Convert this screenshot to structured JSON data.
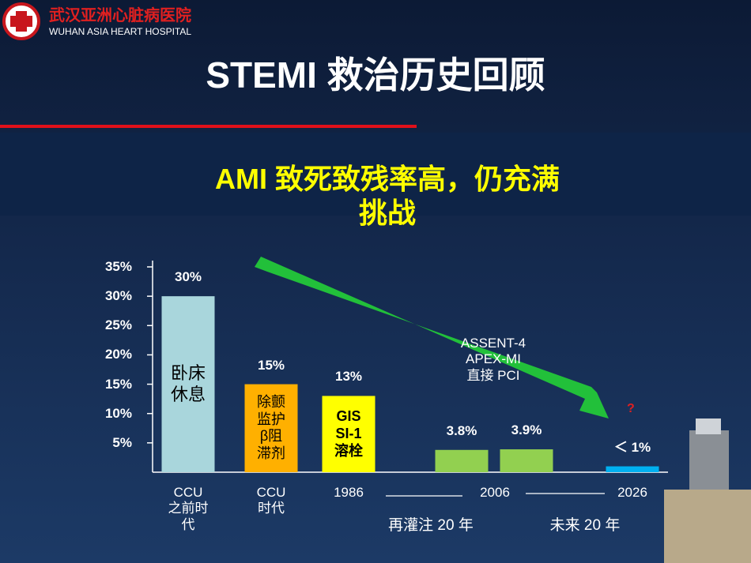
{
  "header": {
    "logo_cn": "武汉亚洲心脏病医院",
    "logo_en": "WUHAN ASIA HEART HOSPITAL",
    "title": "STEMI 救治历史回顾",
    "subtitle": "AMI 致死致残率高，仍充满挑战"
  },
  "chart_data": {
    "type": "bar",
    "categories": [
      "CCU\n之前时\n代",
      "CCU\n时代",
      "1986",
      null,
      "2006",
      "2026"
    ],
    "values": [
      30,
      15,
      13,
      3.8,
      3.9,
      1
    ],
    "value_labels": [
      "30%",
      "15%",
      "13%",
      "3.8%",
      "3.9%",
      "＜ 1%"
    ],
    "colors": [
      "#a9d6dc",
      "#ffb000",
      "#ffff00",
      "#92d050",
      "#92d050",
      "#00b0f0"
    ],
    "bar_texts": [
      "卧床\n休息",
      "除颤\n监护\nβ阻\n滞剂",
      "GIS\nSI-1\n溶栓",
      null,
      null,
      null
    ],
    "ylim": [
      0,
      35
    ],
    "yticks": [
      {
        "value": 5,
        "label": "5%"
      },
      {
        "value": 10,
        "label": "10%"
      },
      {
        "value": 15,
        "label": "15%"
      },
      {
        "value": 20,
        "label": "20%"
      },
      {
        "value": 25,
        "label": "25%"
      },
      {
        "value": 30,
        "label": "30%"
      },
      {
        "value": 35,
        "label": "35%"
      }
    ],
    "annotations": {
      "trial": "ASSENT-4\nAPEX-MI\n直接 PCI",
      "question": "?",
      "era1": "再灌注 20 年",
      "era2": "未来 20 年"
    }
  }
}
